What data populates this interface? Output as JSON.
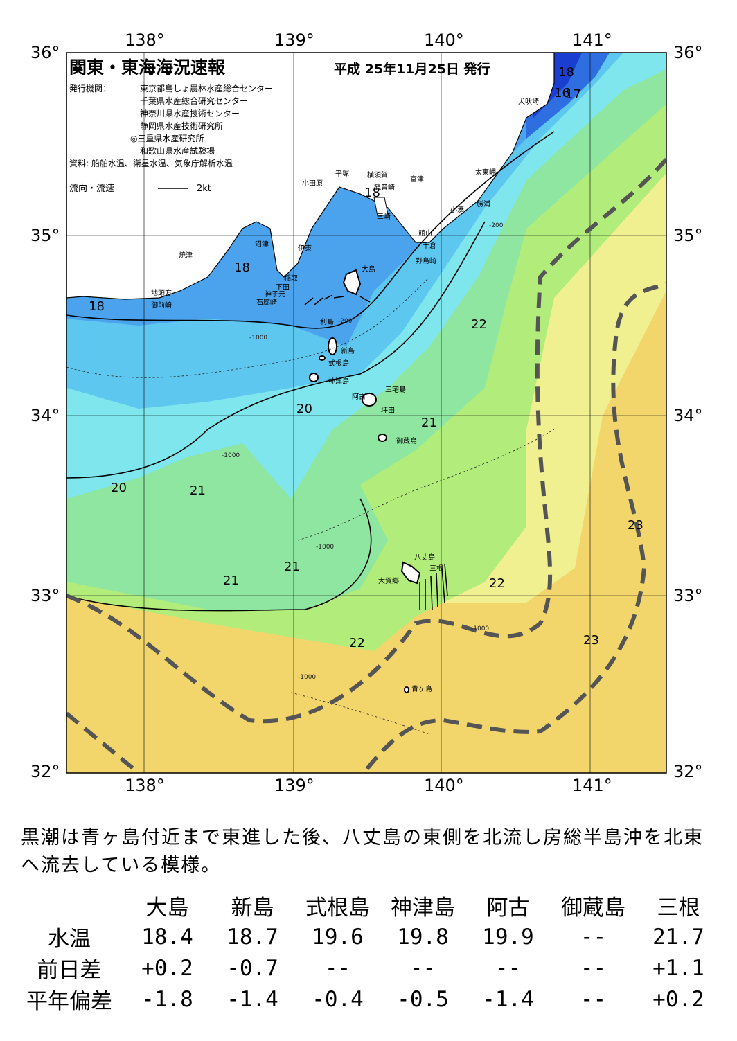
{
  "map": {
    "title": "関東・東海海況速報",
    "issue_date": "平成 25年11月25日 発行",
    "publisher_label": "発行機関：",
    "publishers": [
      "東京都島しょ農林水産総合センター",
      "千葉県水産総合研究センター",
      "神奈川県水産技術センター",
      "静岡県水産技術研究所",
      "◎三重県水産研究所",
      "和歌山県水産試験場"
    ],
    "source": "資料: 船舶水温、衛星水温、気象庁解析水温",
    "legend_label": "流向・流速",
    "legend_scale": "2kt",
    "lon_labels": [
      "138°",
      "139°",
      "140°",
      "141°"
    ],
    "lat_labels": [
      "36°",
      "35°",
      "34°",
      "33°",
      "32°"
    ],
    "place_names": {
      "inubosaki": "犬吠埼",
      "taitozaki": "太東岬",
      "katsuura": "勝浦",
      "kominato": "小湊",
      "tomitsu": "富津",
      "yokosuka": "横須賀",
      "kannonzaki": "観音崎",
      "hiratsuka": "平塚",
      "odawara": "小田原",
      "misaki": "三崎",
      "tateyama": "館山",
      "chikura": "千倉",
      "nojimazaki": "野島崎",
      "numazu": "沼津",
      "ito": "伊東",
      "inatori": "稲取",
      "shimoda": "下田",
      "mikomoto": "神子元",
      "irozaki": "石廊崎",
      "yaizu": "焼津",
      "jitogata": "地頭方",
      "omaezaki": "御前崎",
      "oshima": "大島",
      "toshima": "利島",
      "niijima": "新島",
      "shikinejima": "式根島",
      "kozushima": "神津島",
      "miyakejima": "三宅島",
      "ako": "阿古",
      "tsubota": "坪田",
      "mikurajima": "御蔵島",
      "hachijojima": "八丈島",
      "mitsune": "三根",
      "okago": "大賀郷",
      "aogashima": "青ヶ島"
    },
    "isotherm_labels": [
      "18",
      "18",
      "18",
      "18",
      "16",
      "17",
      "20",
      "20",
      "21",
      "21",
      "21",
      "21",
      "22",
      "22",
      "22",
      "23",
      "23"
    ],
    "depth_labels": [
      "-1000",
      "-200"
    ],
    "colors": {
      "t16": "#1a3fd0",
      "t17": "#2f6ee0",
      "t18": "#4aa3ec",
      "t19": "#5ec7f0",
      "t20": "#7ee6ec",
      "t21": "#8fe6a0",
      "t22": "#b2ec7a",
      "t23": "#f0f090",
      "t24": "#f2d66c",
      "kuroshio": "#555555",
      "land": "#ffffff"
    }
  },
  "description": "黒潮は青ヶ島付近まで東進した後、八丈島の東側を北流し房総半島沖を北東へ流去している模様。",
  "table": {
    "columns": [
      "大島",
      "新島",
      "式根島",
      "神津島",
      "阿古",
      "御蔵島",
      "三根"
    ],
    "rows": [
      {
        "label": "水温",
        "values": [
          "18.4",
          "18.7",
          "19.6",
          "19.8",
          "19.9",
          "--",
          "21.7"
        ]
      },
      {
        "label": "前日差",
        "values": [
          "+0.2",
          "-0.7",
          "--",
          "--",
          "--",
          "--",
          "+1.1"
        ]
      },
      {
        "label": "平年偏差",
        "values": [
          "-1.8",
          "-1.4",
          "-0.4",
          "-0.5",
          "-1.4",
          "--",
          "+0.2"
        ]
      }
    ]
  }
}
